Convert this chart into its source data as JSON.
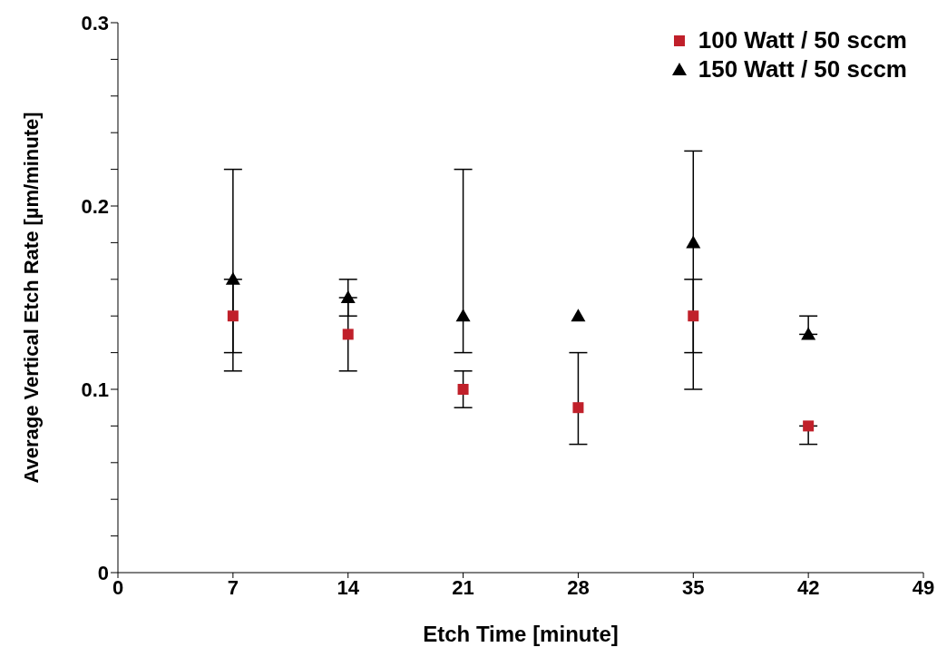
{
  "chart_data": {
    "type": "scatter",
    "xlabel": "Etch Time [minute]",
    "ylabel": "Average Vertical Etch Rate [µm/minute]",
    "x": [
      7,
      14,
      21,
      28,
      35,
      42
    ],
    "series": [
      {
        "name": "100 Watt / 50 sccm",
        "color": "#c0202a",
        "marker": "square",
        "values": [
          0.14,
          0.13,
          0.1,
          0.09,
          0.14,
          0.08
        ],
        "errors": [
          [
            0.12,
            0.16
          ],
          [
            0.11,
            0.15
          ],
          [
            0.09,
            0.11
          ],
          [
            0.07,
            0.12
          ],
          [
            0.12,
            0.16
          ],
          [
            0.07,
            0.08
          ]
        ]
      },
      {
        "name": "150 Watt / 50 sccm",
        "color": "#000000",
        "marker": "triangle",
        "values": [
          0.16,
          0.15,
          0.14,
          0.14,
          0.18,
          0.13
        ],
        "errors": [
          [
            0.11,
            0.22
          ],
          [
            0.14,
            0.16
          ],
          [
            0.12,
            0.22
          ],
          null,
          [
            0.1,
            0.23
          ],
          [
            0.13,
            0.14
          ]
        ]
      }
    ],
    "xlim": [
      0,
      49
    ],
    "xticks": [
      0,
      7,
      14,
      21,
      28,
      35,
      42,
      49
    ],
    "ylim": [
      0,
      0.3
    ],
    "yticks": [
      0,
      {
        "value": 0.02,
        "label": null
      },
      {
        "value": 0.04,
        "label": null
      },
      {
        "value": 0.06,
        "label": null
      },
      {
        "value": 0.08,
        "label": null
      },
      0.1,
      {
        "value": 0.12,
        "label": null
      },
      {
        "value": 0.14,
        "label": null
      },
      {
        "value": 0.16,
        "label": null
      },
      {
        "value": 0.18,
        "label": null
      },
      0.2,
      {
        "value": 0.22,
        "label": null
      },
      {
        "value": 0.24,
        "label": null
      },
      {
        "value": 0.26,
        "label": null
      },
      {
        "value": 0.28,
        "label": null
      },
      0.3
    ],
    "grid": false,
    "legend": "top right"
  }
}
